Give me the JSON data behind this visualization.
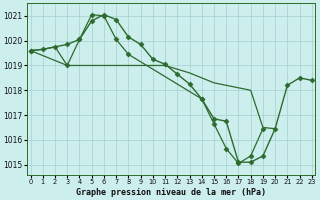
{
  "background_color": "#cceeed",
  "grid_color": "#aad4d3",
  "line_color": "#2d6a2d",
  "marker_color": "#2d6a2d",
  "title": "Graphe pression niveau de la mer (hPa)",
  "ylabel_values": [
    1015,
    1016,
    1017,
    1018,
    1019,
    1020,
    1021
  ],
  "xlabel_values": [
    0,
    1,
    2,
    3,
    4,
    5,
    6,
    7,
    8,
    9,
    10,
    11,
    12,
    13,
    14,
    15,
    16,
    17,
    18,
    19,
    20,
    21,
    22,
    23
  ],
  "ylim": [
    1014.6,
    1021.5
  ],
  "xlim": [
    -0.3,
    23.3
  ],
  "series": [
    {
      "x": [
        0,
        1,
        2,
        3,
        4,
        5,
        6,
        7,
        8,
        9,
        10,
        11,
        12,
        13,
        14,
        15,
        16,
        17,
        18,
        19,
        20,
        21,
        22,
        23
      ],
      "y": [
        1019.6,
        1019.65,
        1019.75,
        1019.85,
        1020.05,
        1020.8,
        1021.05,
        1020.85,
        1020.15,
        1019.85,
        1019.25,
        1019.05,
        1018.65,
        1018.25,
        1017.65,
        1016.85,
        1016.75,
        1015.1,
        1015.1,
        1015.35,
        1016.45,
        1018.2,
        1018.5,
        1018.4
      ],
      "linestyle": "-",
      "linewidth": 1.0,
      "marker": "D",
      "markersize": 2.5
    },
    {
      "x": [
        0,
        1,
        2,
        3,
        4,
        5,
        6,
        7,
        8,
        9,
        10,
        11,
        12,
        13,
        14,
        15,
        16,
        17,
        18,
        19,
        20
      ],
      "y": [
        1019.6,
        1019.65,
        1019.75,
        1019.0,
        1019.0,
        1019.0,
        1019.0,
        1019.0,
        1019.0,
        1019.0,
        1019.0,
        1019.0,
        1018.85,
        1018.7,
        1018.5,
        1018.3,
        1018.2,
        1018.1,
        1018.0,
        1016.5,
        1016.45
      ],
      "linestyle": "-",
      "linewidth": 0.9,
      "marker": null,
      "markersize": 0
    },
    {
      "x": [
        0,
        3,
        4,
        5,
        6,
        7,
        8,
        14,
        15,
        16,
        17,
        18,
        19
      ],
      "y": [
        1019.6,
        1019.0,
        1020.05,
        1021.05,
        1021.0,
        1020.05,
        1019.45,
        1017.65,
        1016.65,
        1015.65,
        1015.05,
        1015.35,
        1016.45
      ],
      "linestyle": "-",
      "linewidth": 0.9,
      "marker": "D",
      "markersize": 2.5
    }
  ]
}
